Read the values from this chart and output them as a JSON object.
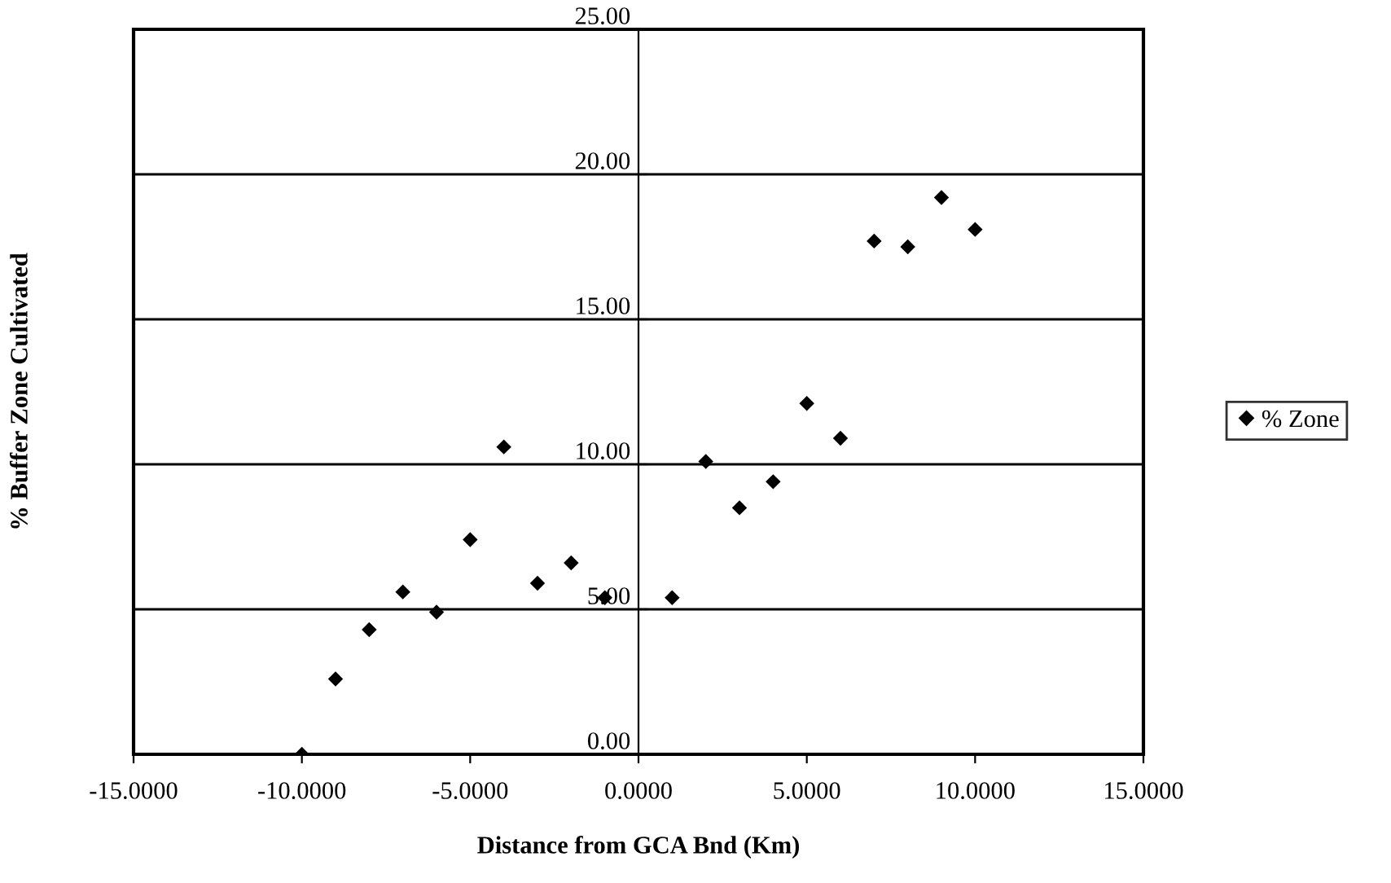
{
  "chart_data": {
    "type": "scatter",
    "xlabel": "Distance from GCA Bnd (Km)",
    "ylabel": "% Buffer Zone Cultivated",
    "x": [
      -10,
      -9,
      -8,
      -7,
      -6,
      -5,
      -4,
      -3,
      -2,
      -1,
      1,
      2,
      3,
      4,
      5,
      6,
      7,
      8,
      9,
      10
    ],
    "series": [
      {
        "name": "% Zone",
        "color": "#000000",
        "values": [
          0.0,
          2.6,
          4.3,
          5.6,
          4.9,
          7.4,
          10.6,
          5.9,
          6.6,
          5.4,
          5.4,
          10.1,
          8.5,
          9.4,
          12.1,
          10.9,
          17.7,
          17.5,
          19.2,
          18.1
        ]
      }
    ],
    "xlim": [
      -15,
      15
    ],
    "xticks": [
      {
        "value": -15,
        "label": "-15.0000"
      },
      {
        "value": -10,
        "label": "-10.0000"
      },
      {
        "value": -5,
        "label": "-5.0000"
      },
      {
        "value": 0,
        "label": "0.0000"
      },
      {
        "value": 5,
        "label": "5.0000"
      },
      {
        "value": 10,
        "label": "10.0000"
      },
      {
        "value": 15,
        "label": "15.0000"
      }
    ],
    "ylim": [
      0,
      25
    ],
    "yticks": [
      {
        "value": 0,
        "label": "0.00"
      },
      {
        "value": 5,
        "label": "5.00"
      },
      {
        "value": 10,
        "label": "10.00"
      },
      {
        "value": 15,
        "label": "15.00"
      },
      {
        "value": 20,
        "label": "20.00"
      },
      {
        "value": 25,
        "label": "25.00"
      }
    ],
    "grid": "y",
    "legend": "right",
    "marker": "diamond"
  }
}
